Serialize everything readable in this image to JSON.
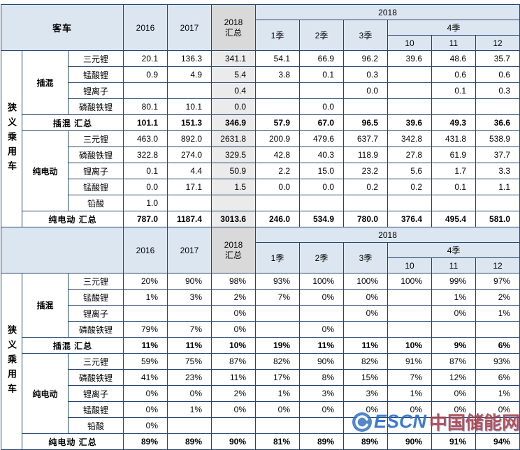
{
  "colors": {
    "header_bg": "#dce6f1",
    "total_column_header_bg": "#d9d9d9",
    "total_column_body_bg": "#ebebeb",
    "border": "#24456f",
    "watermark_blue": "#2a6cc8",
    "watermark_red": "#a8404a"
  },
  "header": {
    "years": [
      "2016",
      "2017"
    ],
    "total": [
      "2018",
      "汇总"
    ],
    "group": "2018",
    "quarters": [
      "1季",
      "2季",
      "3季"
    ],
    "q4": "4季",
    "months": [
      "10",
      "11",
      "12"
    ]
  },
  "watermark": {
    "logo": "ESCN",
    "site": "中国储能网"
  },
  "chart_data": [
    {
      "type": "table",
      "corner_label": "客车",
      "side_label": "狭义乘用车",
      "shade_total_column": true,
      "columns": [
        "2016",
        "2017",
        "2018汇总",
        "2018-1季",
        "2018-2季",
        "2018-3季",
        "2018-10",
        "2018-11",
        "2018-12"
      ],
      "rows": [
        {
          "group": "插混",
          "label": "三元锂",
          "values": [
            "20.1",
            "136.3",
            "341.1",
            "54.1",
            "66.9",
            "96.2",
            "39.6",
            "48.6",
            "35.7"
          ]
        },
        {
          "group": "插混",
          "label": "锰酸锂",
          "values": [
            "0.9",
            "4.9",
            "5.4",
            "3.8",
            "0.1",
            "0.3",
            "",
            "0.6",
            "0.6"
          ]
        },
        {
          "group": "插混",
          "label": "锂离子",
          "values": [
            "",
            "",
            "0.4",
            "",
            "",
            "0.0",
            "",
            "0.1",
            "0.3"
          ]
        },
        {
          "group": "插混",
          "label": "磷酸铁锂",
          "values": [
            "80.1",
            "10.1",
            "0.0",
            "",
            "0.0",
            "",
            "",
            "",
            ""
          ]
        },
        {
          "total": "插混 汇总",
          "values": [
            "101.1",
            "151.3",
            "346.9",
            "57.9",
            "67.0",
            "96.5",
            "39.6",
            "49.3",
            "36.6"
          ]
        },
        {
          "group": "纯电动",
          "label": "三元锂",
          "values": [
            "463.0",
            "892.0",
            "2631.8",
            "200.9",
            "479.6",
            "637.7",
            "342.8",
            "431.8",
            "538.9"
          ]
        },
        {
          "group": "纯电动",
          "label": "磷酸铁锂",
          "values": [
            "322.8",
            "274.0",
            "329.5",
            "42.8",
            "40.3",
            "118.9",
            "27.8",
            "61.9",
            "37.7"
          ]
        },
        {
          "group": "纯电动",
          "label": "锂离子",
          "values": [
            "0.1",
            "4.4",
            "50.9",
            "2.2",
            "15.0",
            "23.2",
            "5.6",
            "1.7",
            "3.3"
          ]
        },
        {
          "group": "纯电动",
          "label": "锰酸锂",
          "values": [
            "0.0",
            "17.1",
            "1.5",
            "0.0",
            "0.0",
            "0.2",
            "0.2",
            "0.1",
            "1.1"
          ]
        },
        {
          "group": "纯电动",
          "label": "铅酸",
          "values": [
            "1.0",
            "",
            "",
            "",
            "",
            "",
            "",
            "",
            ""
          ]
        },
        {
          "total": "纯电动 汇总",
          "values": [
            "787.0",
            "1187.4",
            "3013.6",
            "246.0",
            "534.9",
            "780.0",
            "376.4",
            "495.4",
            "581.0"
          ]
        }
      ]
    },
    {
      "type": "table",
      "corner_label": "",
      "side_label": "狭义乘用车",
      "shade_total_column": false,
      "columns": [
        "2016",
        "2017",
        "2018汇总",
        "2018-1季",
        "2018-2季",
        "2018-3季",
        "2018-10",
        "2018-11",
        "2018-12"
      ],
      "rows": [
        {
          "group": "插混",
          "label": "三元锂",
          "values": [
            "20%",
            "90%",
            "98%",
            "93%",
            "100%",
            "100%",
            "100%",
            "99%",
            "97%"
          ]
        },
        {
          "group": "插混",
          "label": "锰酸锂",
          "values": [
            "1%",
            "3%",
            "2%",
            "7%",
            "0%",
            "0%",
            "",
            "1%",
            "2%"
          ]
        },
        {
          "group": "插混",
          "label": "锂离子",
          "values": [
            "",
            "",
            "0%",
            "",
            "",
            "0%",
            "",
            "0%",
            "1%"
          ]
        },
        {
          "group": "插混",
          "label": "磷酸铁锂",
          "values": [
            "79%",
            "7%",
            "0%",
            "",
            "0%",
            "",
            "",
            "",
            ""
          ]
        },
        {
          "total": "插混 汇总",
          "values": [
            "11%",
            "11%",
            "10%",
            "19%",
            "11%",
            "11%",
            "10%",
            "9%",
            "6%"
          ]
        },
        {
          "group": "纯电动",
          "label": "三元锂",
          "values": [
            "59%",
            "75%",
            "87%",
            "82%",
            "90%",
            "82%",
            "91%",
            "87%",
            "93%"
          ]
        },
        {
          "group": "纯电动",
          "label": "磷酸铁锂",
          "values": [
            "41%",
            "23%",
            "11%",
            "17%",
            "8%",
            "15%",
            "7%",
            "12%",
            "6%"
          ]
        },
        {
          "group": "纯电动",
          "label": "锂离子",
          "values": [
            "0%",
            "0%",
            "2%",
            "1%",
            "3%",
            "3%",
            "1%",
            "0%",
            "1%"
          ]
        },
        {
          "group": "纯电动",
          "label": "锰酸锂",
          "values": [
            "0%",
            "1%",
            "0%",
            "0%",
            "0%",
            "0%",
            "0%",
            "0%",
            "0%"
          ]
        },
        {
          "group": "纯电动",
          "label": "铅酸",
          "values": [
            "0%",
            "",
            "",
            "",
            "",
            "",
            "",
            "",
            ""
          ]
        },
        {
          "total": "纯电动 汇总",
          "values": [
            "89%",
            "89%",
            "90%",
            "81%",
            "89%",
            "89%",
            "90%",
            "91%",
            "94%"
          ]
        }
      ]
    }
  ]
}
